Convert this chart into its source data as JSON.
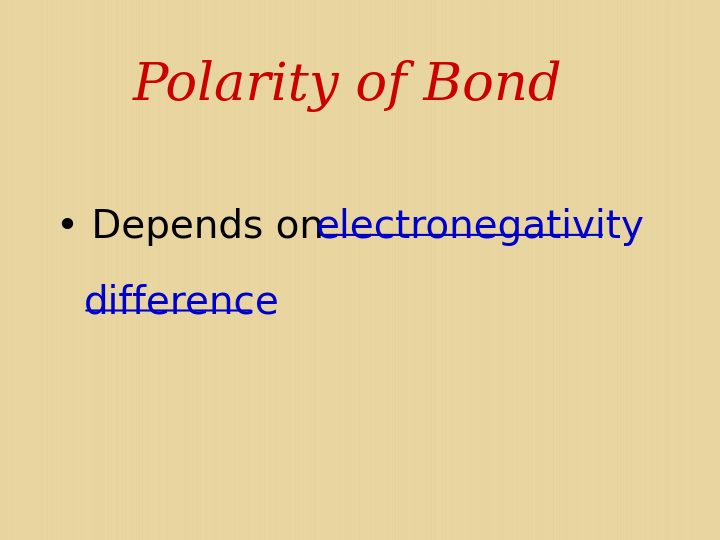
{
  "title": "Polarity of Bond",
  "title_color": "#cc0000",
  "title_fontsize": 38,
  "title_fontstyle": "italic",
  "bullet_prefix": "• Depends on ",
  "link_line1": "electronegativity",
  "link_line2": "difference",
  "bullet_color": "#000000",
  "link_color": "#0000cc",
  "bullet_fontsize": 28,
  "bg_color": "#e8d5a0",
  "fig_width": 7.2,
  "fig_height": 5.4
}
